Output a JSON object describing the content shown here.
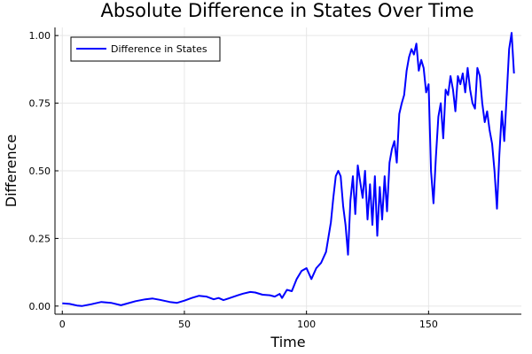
{
  "chart_data": {
    "type": "line",
    "title": "Absolute Difference in States Over Time",
    "xlabel": "Time",
    "ylabel": "Difference",
    "xlim": [
      -3,
      188
    ],
    "ylim": [
      -0.03,
      1.03
    ],
    "xticks": [
      0,
      50,
      100,
      150
    ],
    "yticks": [
      0.0,
      0.25,
      0.5,
      0.75,
      1.0
    ],
    "ytick_labels": [
      "0.00",
      "0.25",
      "0.50",
      "0.75",
      "1.00"
    ],
    "grid": true,
    "legend_position": "top-left",
    "series": [
      {
        "name": "Difference in States",
        "color": "#0000ff",
        "x": [
          0,
          3,
          6,
          8,
          12,
          16,
          20,
          24,
          26,
          30,
          34,
          37,
          40,
          44,
          47,
          50,
          53,
          56,
          59,
          62,
          64,
          66,
          68,
          70,
          72,
          74,
          77,
          79,
          82,
          85,
          87,
          89,
          90,
          92,
          94,
          96,
          98,
          100,
          102,
          104,
          106,
          108,
          110,
          111,
          112,
          113,
          114,
          115,
          116,
          117,
          118,
          119,
          120,
          121,
          122,
          123,
          124,
          125,
          126,
          127,
          128,
          129,
          130,
          131,
          132,
          133,
          134,
          135,
          136,
          137,
          138,
          139,
          140,
          141,
          142,
          143,
          144,
          145,
          146,
          147,
          148,
          149,
          150,
          151,
          152,
          153,
          154,
          155,
          156,
          157,
          158,
          159,
          160,
          161,
          162,
          163,
          164,
          165,
          166,
          167,
          168,
          169,
          170,
          171,
          172,
          173,
          174,
          175,
          176,
          177,
          178,
          179,
          180,
          181,
          182,
          183,
          184,
          185
        ],
        "values": [
          0.01,
          0.008,
          0.002,
          0.0,
          0.007,
          0.015,
          0.012,
          0.003,
          0.008,
          0.018,
          0.025,
          0.028,
          0.023,
          0.015,
          0.012,
          0.02,
          0.03,
          0.038,
          0.035,
          0.025,
          0.03,
          0.022,
          0.028,
          0.034,
          0.04,
          0.046,
          0.052,
          0.05,
          0.042,
          0.04,
          0.035,
          0.045,
          0.03,
          0.06,
          0.055,
          0.1,
          0.13,
          0.14,
          0.1,
          0.14,
          0.16,
          0.2,
          0.31,
          0.4,
          0.48,
          0.5,
          0.48,
          0.37,
          0.3,
          0.19,
          0.39,
          0.48,
          0.34,
          0.52,
          0.46,
          0.4,
          0.5,
          0.32,
          0.45,
          0.3,
          0.48,
          0.26,
          0.44,
          0.32,
          0.48,
          0.35,
          0.53,
          0.58,
          0.61,
          0.53,
          0.71,
          0.75,
          0.78,
          0.87,
          0.92,
          0.95,
          0.93,
          0.97,
          0.87,
          0.91,
          0.88,
          0.79,
          0.82,
          0.5,
          0.38,
          0.55,
          0.7,
          0.75,
          0.62,
          0.8,
          0.78,
          0.85,
          0.8,
          0.72,
          0.85,
          0.82,
          0.86,
          0.79,
          0.88,
          0.8,
          0.75,
          0.73,
          0.88,
          0.85,
          0.75,
          0.68,
          0.72,
          0.65,
          0.6,
          0.5,
          0.36,
          0.56,
          0.72,
          0.61,
          0.78,
          0.95,
          1.01,
          0.86
        ]
      }
    ]
  }
}
